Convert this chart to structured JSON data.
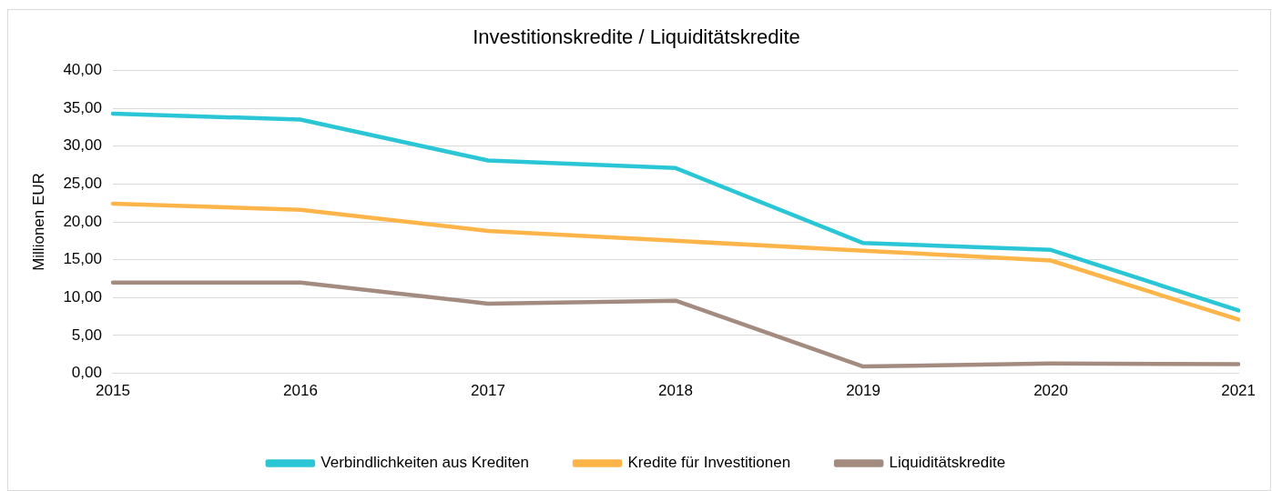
{
  "chart_data": {
    "type": "line",
    "title": "Investitionskredite / Liquiditätskredite",
    "ylabel": "Millionen EUR",
    "categories": [
      "2015",
      "2016",
      "2017",
      "2018",
      "2019",
      "2020",
      "2021"
    ],
    "series": [
      {
        "name": "Verbindlichkeiten aus Krediten",
        "color": "#2bc6d6",
        "values": [
          34.3,
          33.5,
          28.1,
          27.1,
          17.2,
          16.3,
          8.3
        ]
      },
      {
        "name": "Kredite für Investitionen",
        "color": "#fdb54a",
        "values": [
          22.4,
          21.6,
          18.8,
          17.5,
          16.2,
          14.9,
          7.1
        ]
      },
      {
        "name": "Liquiditätskredite",
        "color": "#a38b80",
        "values": [
          12.0,
          12.0,
          9.2,
          9.6,
          0.9,
          1.3,
          1.2
        ]
      }
    ],
    "ylim": [
      0,
      40
    ],
    "yticks": [
      {
        "value": 0,
        "label": "0,00"
      },
      {
        "value": 5,
        "label": "5,00"
      },
      {
        "value": 10,
        "label": "10,00"
      },
      {
        "value": 15,
        "label": "15,00"
      },
      {
        "value": 20,
        "label": "20,00"
      },
      {
        "value": 25,
        "label": "25,00"
      },
      {
        "value": 30,
        "label": "30,00"
      },
      {
        "value": 35,
        "label": "35,00"
      },
      {
        "value": 40,
        "label": "40,00"
      }
    ],
    "grid": "y",
    "legend": "bottom",
    "marker": "none",
    "line_style": "solid"
  }
}
